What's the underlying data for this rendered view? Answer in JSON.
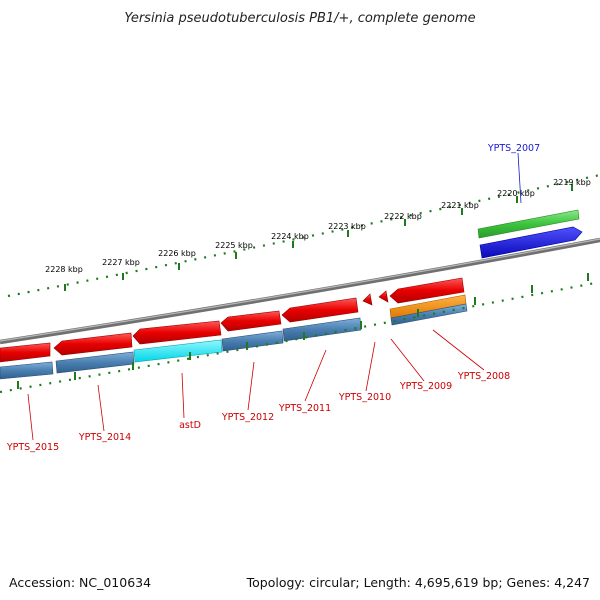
{
  "title": "Yersinia pseudotuberculosis PB1/+, complete genome",
  "accession": "Accession: NC_010634",
  "topology": "Topology: circular; Length: 4,695,619 bp; Genes: 4,247",
  "ruler": {
    "labels": [
      "2219 kbp",
      "2220 kbp",
      "2221 kbp",
      "2222 kbp",
      "2223 kbp",
      "2224 kbp",
      "2225 kbp",
      "2226 kbp",
      "2227 kbp",
      "2228 kbp"
    ]
  },
  "genes": {
    "ypts_2007": "YPTS_2007",
    "ypts_2008": "YPTS_2008",
    "ypts_2009": "YPTS_2009",
    "ypts_2010": "YPTS_2010",
    "ypts_2011": "YPTS_2011",
    "ypts_2012": "YPTS_2012",
    "astd": "astD",
    "ypts_2014": "YPTS_2014",
    "ypts_2015": "YPTS_2015"
  },
  "colors": {
    "cds_red": "#e80000",
    "gene_blue_gray": "#4a7fb0",
    "cyan": "#00e5f0",
    "green": "#3dc43d",
    "blue": "#1010d8",
    "orange": "#f08a10",
    "backbone": "#808080",
    "ruler_green": "#1e7a1e"
  }
}
